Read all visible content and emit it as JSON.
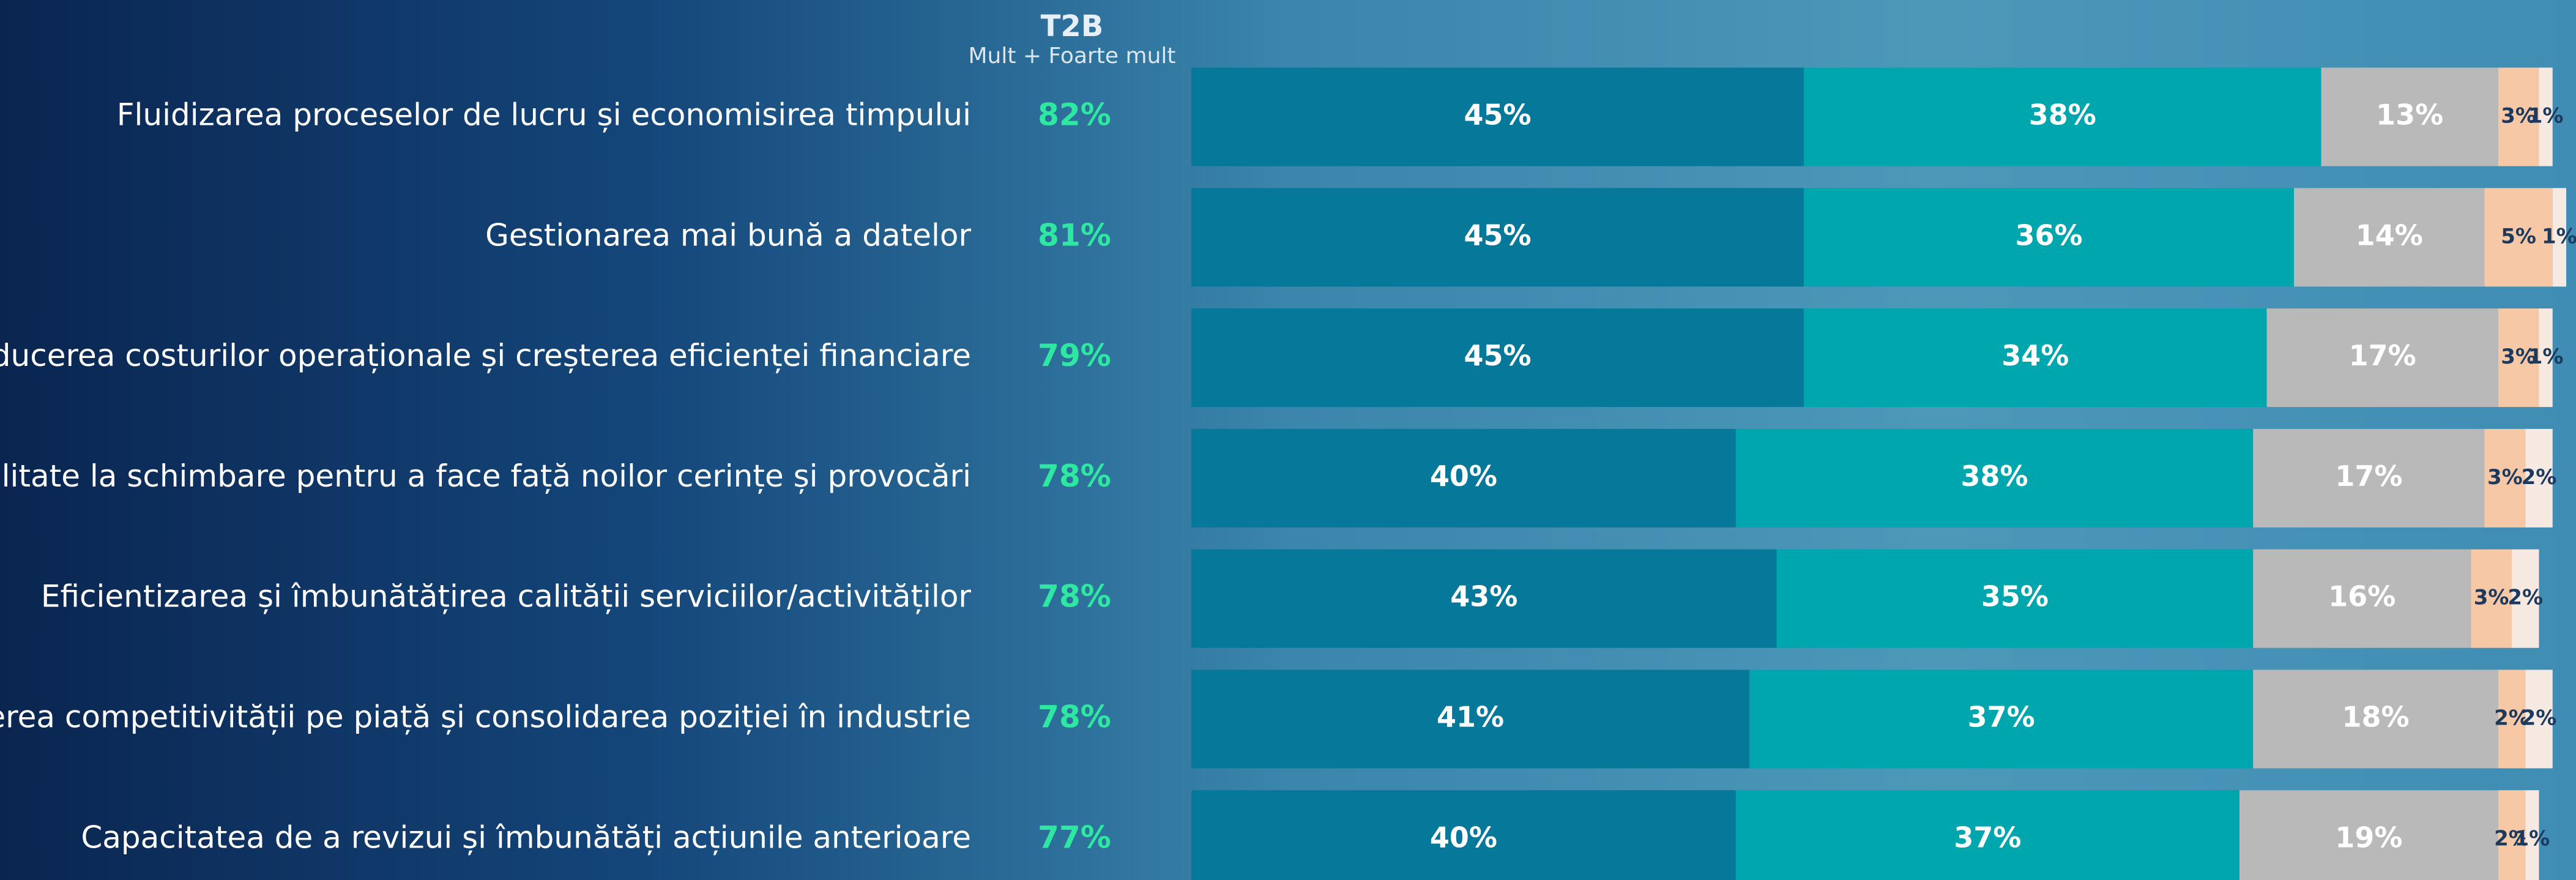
{
  "chart_data": {
    "type": "bar",
    "orientation": "horizontal",
    "stacked": true,
    "categories": [
      "Fluidizarea proceselor de lucru și economisirea timpului",
      "Gestionarea mai bună a datelor",
      "Reducerea costurilor operaționale și creșterea eficienței financiare",
      "Adaptabilitate la schimbare pentru a face față noilor cerințe și provocări",
      "Eficientizarea și îmbunătățirea calității serviciilor/activităților",
      "Creșterea competitivității pe piață și consolidarea poziției în industrie",
      "Capacitatea de a revizui și îmbunătăți acțiunile anterioare"
    ],
    "t2b": {
      "title": "T2B",
      "subtitle": "Mult + Foarte mult",
      "color": "#2ee8a2",
      "values": [
        82,
        81,
        79,
        78,
        78,
        78,
        77
      ],
      "value_labels": [
        "82%",
        "81%",
        "79%",
        "78%",
        "78%",
        "78%",
        "77%"
      ]
    },
    "series": [
      {
        "color": "#06789a",
        "label_color": "#ffffff",
        "values": [
          45,
          45,
          45,
          40,
          43,
          41,
          40
        ],
        "value_labels": [
          "45%",
          "45%",
          "45%",
          "40%",
          "43%",
          "41%",
          "40%"
        ]
      },
      {
        "color": "#00a6ae",
        "label_color": "#ffffff",
        "values": [
          38,
          36,
          34,
          38,
          35,
          37,
          37
        ],
        "value_labels": [
          "38%",
          "36%",
          "34%",
          "38%",
          "35%",
          "37%",
          "37%"
        ]
      },
      {
        "color": "#b9b9b9",
        "label_color": "#ffffff",
        "values": [
          13,
          14,
          17,
          17,
          16,
          18,
          19
        ],
        "value_labels": [
          "13%",
          "14%",
          "17%",
          "17%",
          "16%",
          "18%",
          "19%"
        ]
      },
      {
        "color": "#f7c8a6",
        "label_color": "#1c3a5e",
        "values": [
          3,
          5,
          3,
          3,
          3,
          2,
          2
        ],
        "value_labels": [
          "3%",
          "5%",
          "3%",
          "3%",
          "3%",
          "2%",
          "2%"
        ]
      },
      {
        "color": "#f6e9e1",
        "label_color": "#1c3a5e",
        "values": [
          1,
          1,
          1,
          2,
          2,
          2,
          1
        ],
        "value_labels": [
          "1%",
          "1%",
          "1%",
          "2%",
          "2%",
          "2%",
          "1%"
        ]
      }
    ]
  }
}
